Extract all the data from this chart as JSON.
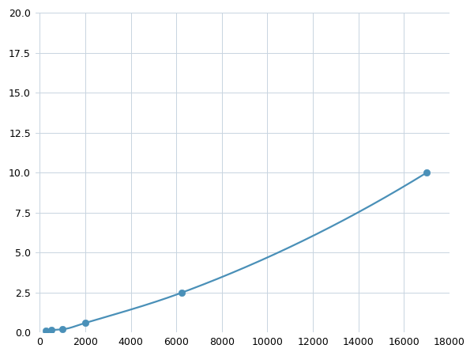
{
  "x": [
    250,
    500,
    1000,
    2000,
    6250,
    17000
  ],
  "y": [
    0.1,
    0.15,
    0.2,
    0.6,
    2.5,
    10.0
  ],
  "line_color": "#4a90b8",
  "marker_color": "#4a90b8",
  "marker_size": 6,
  "line_width": 1.6,
  "xlim": [
    -200,
    18000
  ],
  "ylim": [
    0,
    20
  ],
  "xticks": [
    0,
    2000,
    4000,
    6000,
    8000,
    10000,
    12000,
    14000,
    16000,
    18000
  ],
  "yticks": [
    0.0,
    2.5,
    5.0,
    7.5,
    10.0,
    12.5,
    15.0,
    17.5,
    20.0
  ],
  "grid_color": "#c8d4e0",
  "background_color": "#ffffff",
  "figure_size": [
    6.0,
    4.5
  ],
  "dpi": 100
}
